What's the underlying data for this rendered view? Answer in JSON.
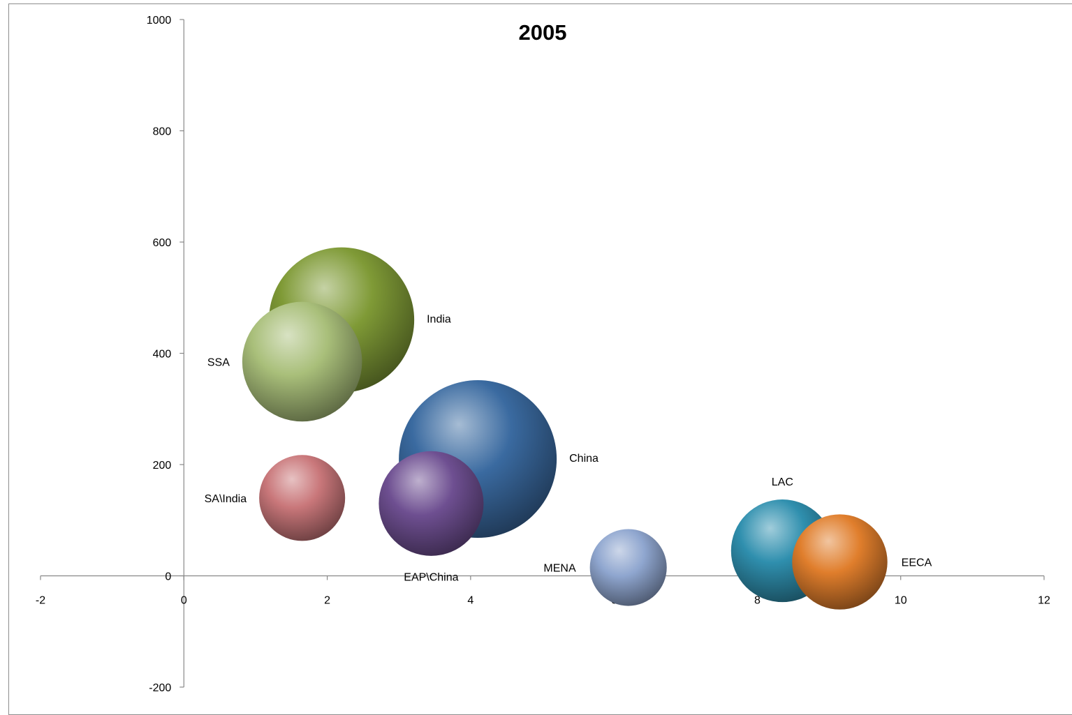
{
  "chart_data": {
    "type": "bubble",
    "title": "2005",
    "xlabel": "",
    "ylabel": "",
    "xlim": [
      -2,
      12
    ],
    "ylim": [
      -200,
      1000
    ],
    "x_ticks": [
      "-2",
      "0",
      "2",
      "4",
      "6",
      "8",
      "10",
      "12"
    ],
    "y_ticks": [
      "-200",
      "0",
      "200",
      "400",
      "600",
      "800",
      "1000"
    ],
    "grid": false,
    "legend": "none",
    "points": [
      {
        "label": "India",
        "x": 2.2,
        "y": 460,
        "size": 1000,
        "color": "#7f9a36"
      },
      {
        "label": "SSA",
        "x": 1.65,
        "y": 385,
        "size": 680,
        "color": "#a9bf7a"
      },
      {
        "label": "China",
        "x": 4.1,
        "y": 210,
        "size": 1180,
        "color": "#3a6aa0"
      },
      {
        "label": "SA\\India",
        "x": 1.65,
        "y": 140,
        "size": 350,
        "color": "#c9777a"
      },
      {
        "label": "EAP\\China",
        "x": 3.45,
        "y": 130,
        "size": 520,
        "color": "#6e4f91"
      },
      {
        "label": "MENA",
        "x": 6.2,
        "y": 15,
        "size": 280,
        "color": "#8fa6cf"
      },
      {
        "label": "LAC",
        "x": 8.35,
        "y": 45,
        "size": 500,
        "color": "#2f8fae"
      },
      {
        "label": "EECA",
        "x": 9.15,
        "y": 25,
        "size": 430,
        "color": "#e07e2c"
      }
    ]
  }
}
